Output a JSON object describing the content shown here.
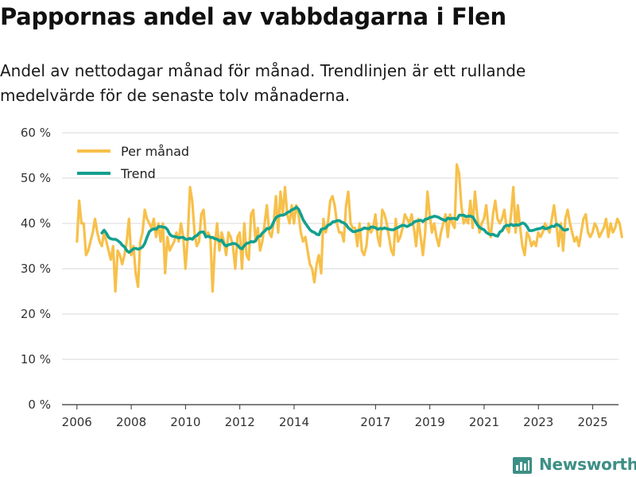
{
  "title": "Pappornas andel av vabbdagarna i Flen",
  "subtitle": "Andel av nettodagar månad för månad. Trendlinjen är ett rullande medelvärde för de senaste tolv månaderna.",
  "brand": {
    "name": "Newsworthy",
    "icon": "newsworthy-logo-icon"
  },
  "colors": {
    "monthly": "#f7c04a",
    "trend": "#13a08e",
    "grid": "#d9d9d9",
    "brand": "#3d8f85"
  },
  "chart_data": {
    "type": "line",
    "title": "Pappornas andel av vabbdagarna i Flen",
    "xlabel": "",
    "ylabel": "",
    "ylim": [
      0,
      60
    ],
    "xlim": [
      2005.45,
      2025.95
    ],
    "y_ticks": [
      0,
      10,
      20,
      30,
      40,
      50,
      60
    ],
    "y_tick_labels": [
      "0 %",
      "10 %",
      "20 %",
      "30 %",
      "40 %",
      "50 %",
      "60 %"
    ],
    "x_ticks": [
      2006,
      2008,
      2010,
      2012,
      2014,
      2017,
      2019,
      2021,
      2023,
      2025
    ],
    "x_tick_labels": [
      "2006",
      "2008",
      "2010",
      "2012",
      "2014",
      "2017",
      "2019",
      "2021",
      "2023",
      "2025"
    ],
    "legend": {
      "position": "top-left"
    },
    "grid": true,
    "series": [
      {
        "name": "Per månad",
        "x_start": 2006.0,
        "x_step": 0.0833,
        "values": [
          36,
          45,
          40,
          40,
          33,
          34,
          36,
          38,
          41,
          38,
          36,
          35,
          38,
          36,
          34,
          32,
          35,
          25,
          34,
          33,
          31,
          33,
          36,
          41,
          33,
          35,
          29,
          26,
          36,
          38,
          43,
          41,
          40,
          39,
          41,
          37,
          40,
          36,
          40,
          29,
          37,
          34,
          35,
          36,
          38,
          36,
          40,
          37,
          30,
          37,
          48,
          45,
          38,
          35,
          36,
          42,
          43,
          37,
          38,
          37,
          25,
          35,
          40,
          34,
          38,
          36,
          33,
          38,
          37,
          35,
          30,
          37,
          38,
          30,
          40,
          33,
          32,
          42,
          43,
          36,
          39,
          34,
          36,
          40,
          44,
          38,
          37,
          40,
          46,
          38,
          47,
          42,
          48,
          42,
          40,
          44,
          40,
          44,
          42,
          38,
          36,
          37,
          34,
          31,
          30,
          27,
          31,
          33,
          29,
          41,
          38,
          40,
          45,
          46,
          44,
          40,
          38,
          38,
          36,
          44,
          47,
          40,
          39,
          39,
          35,
          40,
          34,
          33,
          35,
          40,
          38,
          39,
          42,
          37,
          35,
          43,
          42,
          40,
          37,
          34,
          33,
          41,
          36,
          37,
          39,
          42,
          41,
          40,
          42,
          39,
          35,
          41,
          37,
          33,
          38,
          47,
          42,
          38,
          40,
          37,
          35,
          38,
          40,
          42,
          37,
          42,
          40,
          39,
          53,
          51,
          44,
          40,
          41,
          40,
          45,
          39,
          47,
          42,
          38,
          40,
          41,
          44,
          39,
          37,
          42,
          45,
          41,
          40,
          41,
          43,
          39,
          38,
          42,
          48,
          38,
          44,
          39,
          35,
          33,
          38,
          37,
          35,
          36,
          35,
          38,
          37,
          38,
          40,
          39,
          38,
          41,
          44,
          40,
          35,
          40,
          34,
          41,
          43,
          40,
          38,
          36,
          37,
          35,
          38,
          41,
          42,
          38,
          37,
          38,
          40,
          39,
          37,
          38,
          39,
          41,
          37,
          40,
          38,
          39,
          41,
          40,
          37
        ]
      },
      {
        "name": "Trend",
        "x_start": 2006.92,
        "x_step": 0.0833,
        "values": [
          37.9,
          38.5,
          37.8,
          36.9,
          36.6,
          36.5,
          36.5,
          36.2,
          35.8,
          35.2,
          34.8,
          34.0,
          33.6,
          34.0,
          34.4,
          34.5,
          34.3,
          34.5,
          34.8,
          35.6,
          37.0,
          38.2,
          38.6,
          38.8,
          38.7,
          39.3,
          39.3,
          39.2,
          39.1,
          38.6,
          37.6,
          37.2,
          37.1,
          37.0,
          36.8,
          36.9,
          36.9,
          36.5,
          36.5,
          36.7,
          36.5,
          37.1,
          37.3,
          37.9,
          38.1,
          38.1,
          37.0,
          37.2,
          36.9,
          36.9,
          36.6,
          36.5,
          36.1,
          36.3,
          35.4,
          35.0,
          35.3,
          35.4,
          35.6,
          35.5,
          35.2,
          34.6,
          34.4,
          35.1,
          35.6,
          35.7,
          36.0,
          35.9,
          36.2,
          37.1,
          37.2,
          37.9,
          38.3,
          38.9,
          38.8,
          39.3,
          40.4,
          41.3,
          41.6,
          41.8,
          41.8,
          42.0,
          42.4,
          42.6,
          43.0,
          43.2,
          43.6,
          43.1,
          42.0,
          40.8,
          40.0,
          39.3,
          38.6,
          38.2,
          38.0,
          37.6,
          37.5,
          38.7,
          38.8,
          39.0,
          39.6,
          39.8,
          40.3,
          40.4,
          40.6,
          40.6,
          40.3,
          40.1,
          39.7,
          39.0,
          38.6,
          38.2,
          38.2,
          38.4,
          38.5,
          38.7,
          39.0,
          38.9,
          38.8,
          39.2,
          39.2,
          39.0,
          38.7,
          38.9,
          38.8,
          39.0,
          38.8,
          38.7,
          38.6,
          38.6,
          38.9,
          39.1,
          39.4,
          39.6,
          39.5,
          39.3,
          39.6,
          39.8,
          40.3,
          40.5,
          40.6,
          40.7,
          40.4,
          40.9,
          41.0,
          41.3,
          41.4,
          41.6,
          41.5,
          41.3,
          41.0,
          40.8,
          40.6,
          41.2,
          41.0,
          41.1,
          41.1,
          40.9,
          41.8,
          41.8,
          41.8,
          41.5,
          41.6,
          41.6,
          41.4,
          40.6,
          39.7,
          39.1,
          38.8,
          38.6,
          38.0,
          37.7,
          37.5,
          37.6,
          37.3,
          37.2,
          38.1,
          38.4,
          39.3,
          39.6,
          39.5,
          39.8,
          39.5,
          39.7,
          39.6,
          39.8,
          40.1,
          39.9,
          39.3,
          38.4,
          38.4,
          38.5,
          38.7,
          38.8,
          38.9,
          39.2,
          38.8,
          38.9,
          39.1,
          39.4,
          39.3,
          39.8,
          39.6,
          39.2,
          38.6,
          38.5,
          38.7
        ]
      }
    ]
  }
}
